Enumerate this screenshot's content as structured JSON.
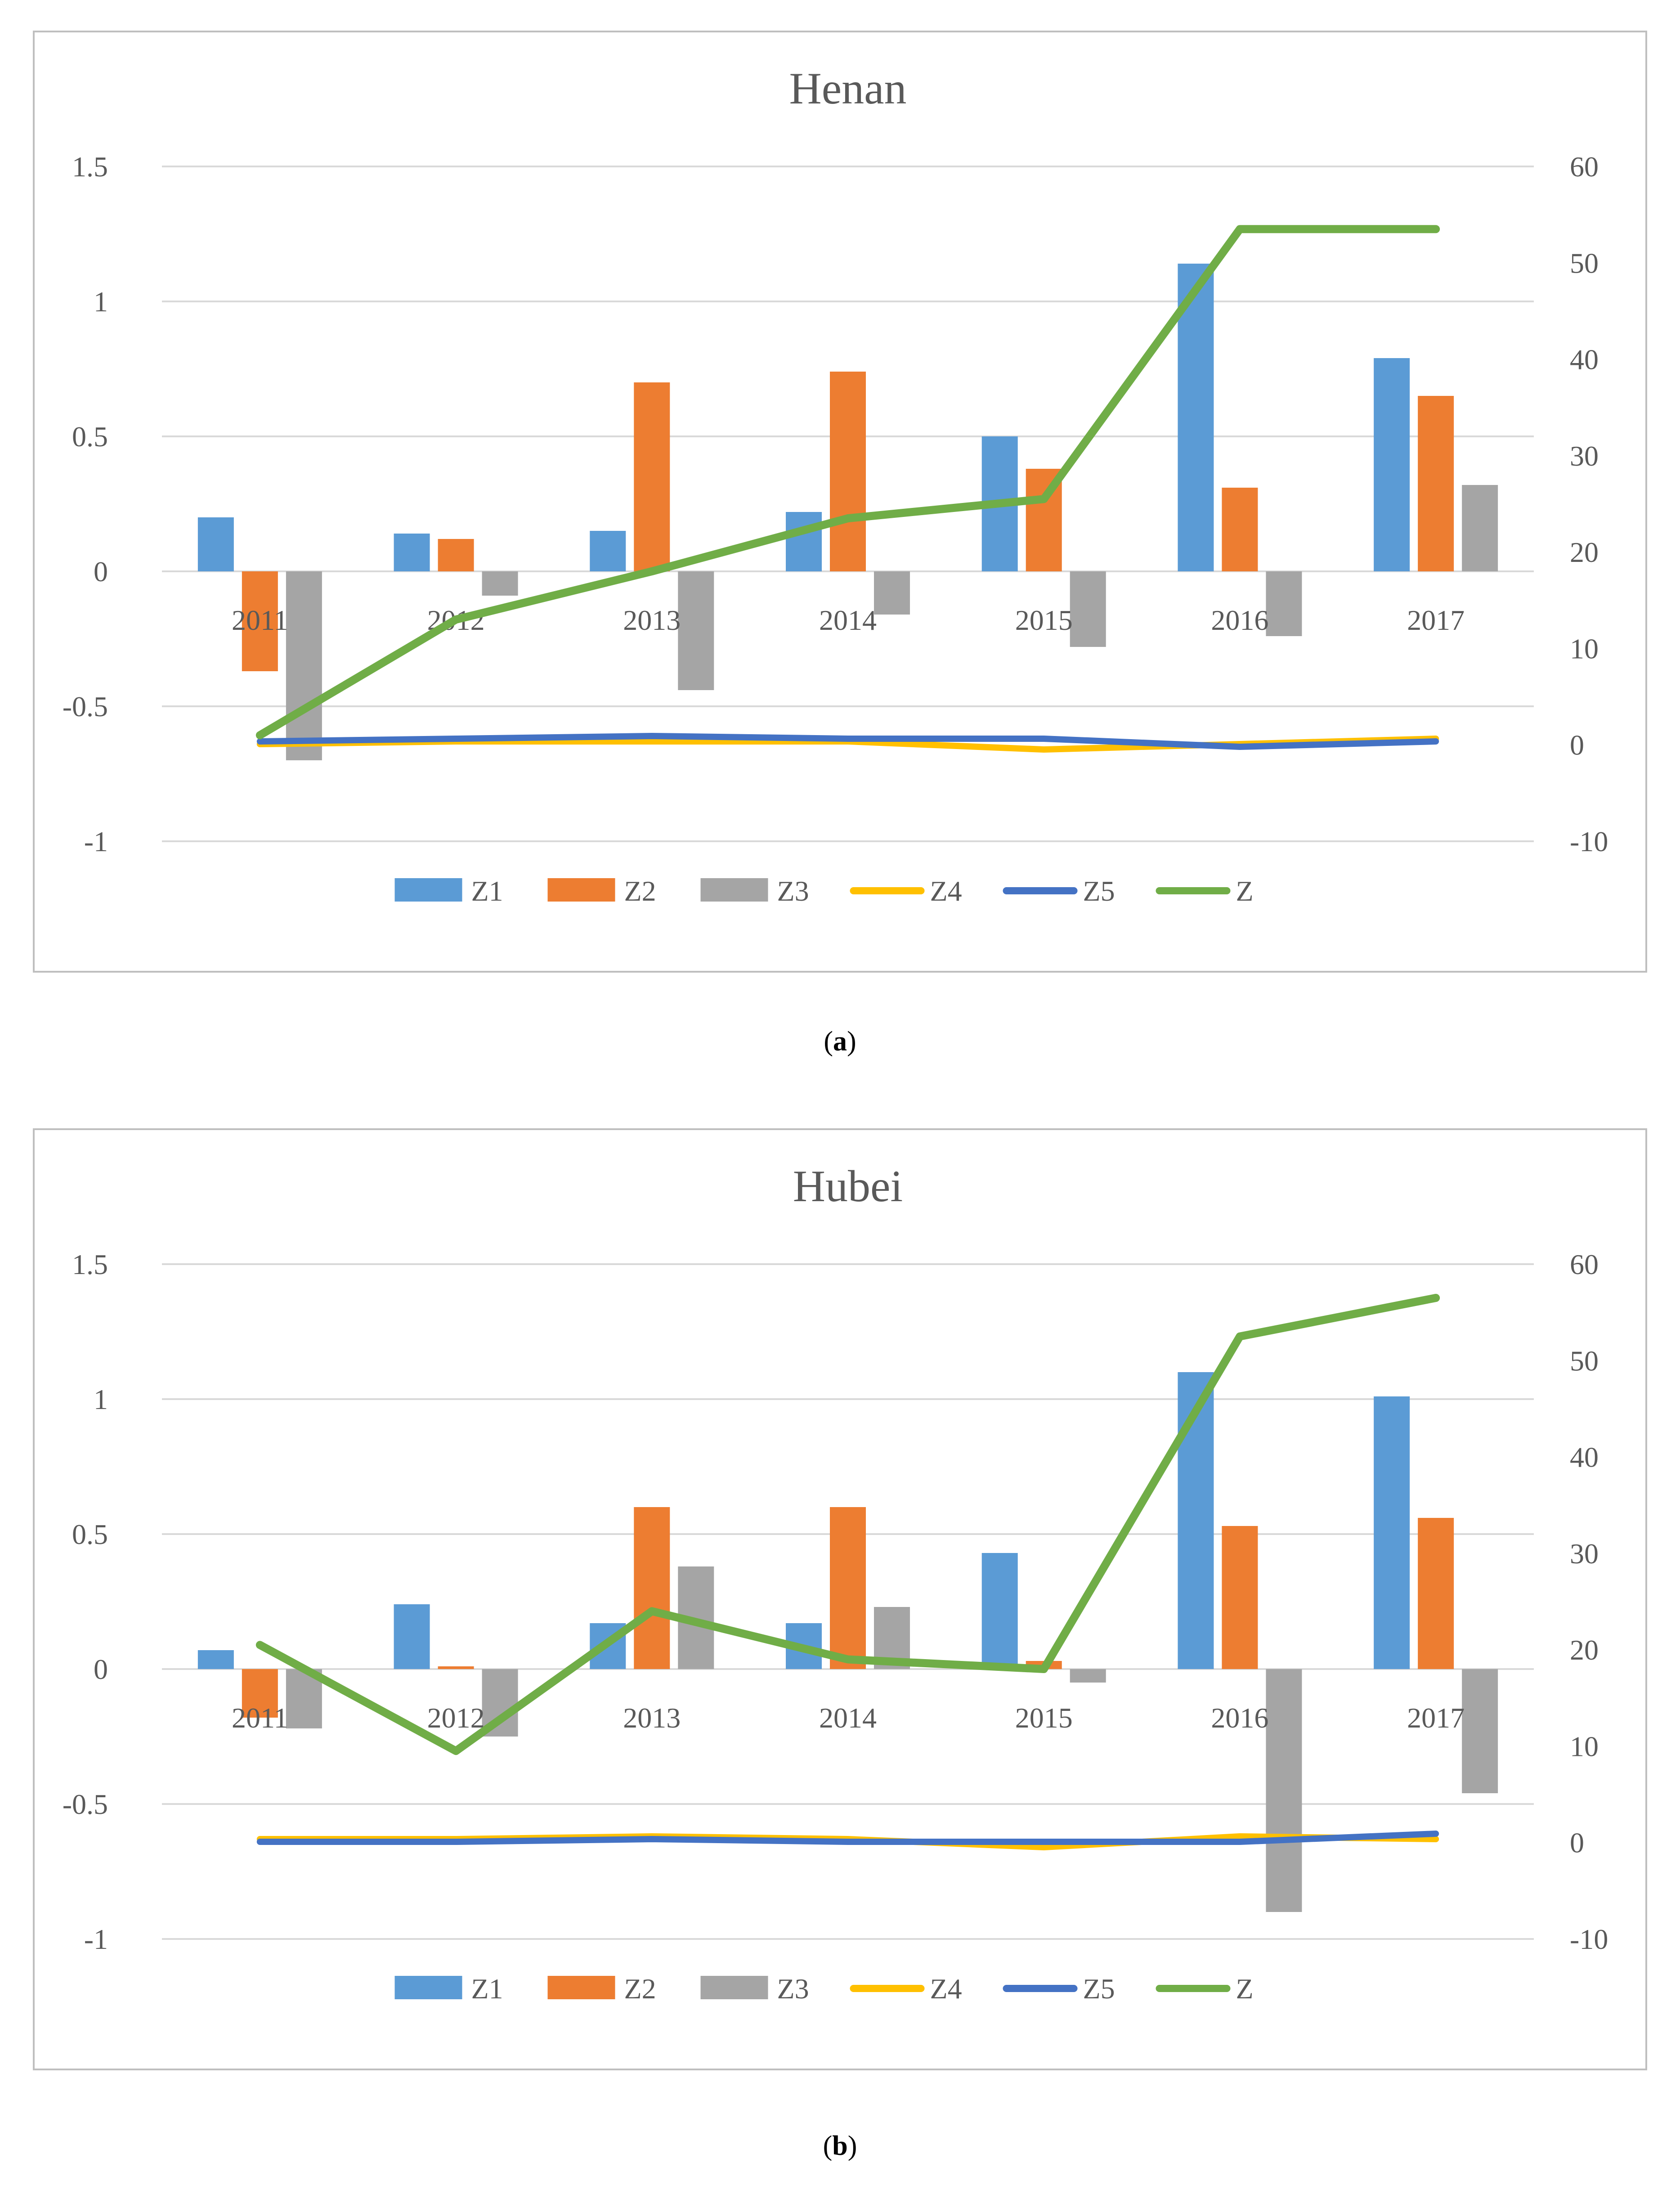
{
  "colors": {
    "Z1": "#5B9BD5",
    "Z2": "#ED7D31",
    "Z3": "#A5A5A5",
    "Z4": "#FFC000",
    "Z5": "#4472C4",
    "Z": "#70AD47",
    "grid": "#D9D9D9",
    "border": "#BFBFBF",
    "text": "#595959"
  },
  "chart_data": [
    {
      "type": "bar",
      "title": "Henan",
      "caption": {
        "open": "(",
        "letter": "a",
        "close": ")"
      },
      "categories": [
        "2011",
        "2012",
        "2013",
        "2014",
        "2015",
        "2016",
        "2017"
      ],
      "y_left": {
        "min": -1,
        "max": 1.5,
        "ticks": [
          1.5,
          1,
          0.5,
          0,
          -0.5,
          -1
        ],
        "tick_labels": [
          "1.5",
          "1",
          "0.5",
          "0",
          "-0.5",
          "-1"
        ]
      },
      "y_right": {
        "min": -10,
        "max": 60,
        "ticks": [
          60,
          50,
          40,
          30,
          20,
          10,
          0,
          -10
        ],
        "tick_labels": [
          "60",
          "50",
          "40",
          "30",
          "20",
          "10",
          "0",
          "-10"
        ]
      },
      "bar_series": [
        {
          "name": "Z1",
          "values": [
            0.2,
            0.14,
            0.15,
            0.22,
            0.5,
            1.14,
            0.79
          ]
        },
        {
          "name": "Z2",
          "values": [
            -0.37,
            0.12,
            0.7,
            0.74,
            0.38,
            0.31,
            0.65
          ]
        },
        {
          "name": "Z3",
          "values": [
            -0.7,
            -0.09,
            -0.44,
            -0.16,
            -0.28,
            -0.24,
            0.32
          ]
        }
      ],
      "line_series": [
        {
          "name": "Z4",
          "axis": "left",
          "values": [
            -0.64,
            -0.63,
            -0.63,
            -0.63,
            -0.66,
            -0.64,
            -0.62
          ]
        },
        {
          "name": "Z5",
          "axis": "left",
          "values": [
            -0.63,
            -0.62,
            -0.61,
            -0.62,
            -0.62,
            -0.65,
            -0.63
          ]
        },
        {
          "name": "Z",
          "axis": "right",
          "values": [
            1,
            13,
            18,
            23.5,
            25.5,
            53.5,
            53.5
          ]
        }
      ],
      "legend": [
        "Z1",
        "Z2",
        "Z3",
        "Z4",
        "Z5",
        "Z"
      ],
      "legend_position": "bottom"
    },
    {
      "type": "bar",
      "title": "Hubei",
      "caption": {
        "open": "(",
        "letter": "b",
        "close": ")"
      },
      "categories": [
        "2011",
        "2012",
        "2013",
        "2014",
        "2015",
        "2016",
        "2017"
      ],
      "y_left": {
        "min": -1,
        "max": 1.5,
        "ticks": [
          1.5,
          1,
          0.5,
          0,
          -0.5,
          -1
        ],
        "tick_labels": [
          "1.5",
          "1",
          "0.5",
          "0",
          "-0.5",
          "-1"
        ]
      },
      "y_right": {
        "min": -10,
        "max": 60,
        "ticks": [
          60,
          50,
          40,
          30,
          20,
          10,
          0,
          -10
        ],
        "tick_labels": [
          "60",
          "50",
          "40",
          "30",
          "20",
          "10",
          "0",
          "-10"
        ]
      },
      "bar_series": [
        {
          "name": "Z1",
          "values": [
            0.07,
            0.24,
            0.17,
            0.17,
            0.43,
            1.1,
            1.01
          ]
        },
        {
          "name": "Z2",
          "values": [
            -0.18,
            0.01,
            0.6,
            0.6,
            0.03,
            0.53,
            0.56
          ]
        },
        {
          "name": "Z3",
          "values": [
            -0.22,
            -0.25,
            0.38,
            0.23,
            -0.05,
            -0.9,
            -0.46
          ]
        }
      ],
      "line_series": [
        {
          "name": "Z4",
          "axis": "left",
          "values": [
            -0.63,
            -0.63,
            -0.62,
            -0.63,
            -0.66,
            -0.62,
            -0.63
          ]
        },
        {
          "name": "Z5",
          "axis": "left",
          "values": [
            -0.64,
            -0.64,
            -0.63,
            -0.64,
            -0.64,
            -0.64,
            -0.61
          ]
        },
        {
          "name": "Z",
          "axis": "right",
          "values": [
            20.5,
            9.5,
            24,
            19,
            18,
            52.5,
            56.5
          ]
        }
      ],
      "legend": [
        "Z1",
        "Z2",
        "Z3",
        "Z4",
        "Z5",
        "Z"
      ],
      "legend_position": "bottom"
    }
  ]
}
